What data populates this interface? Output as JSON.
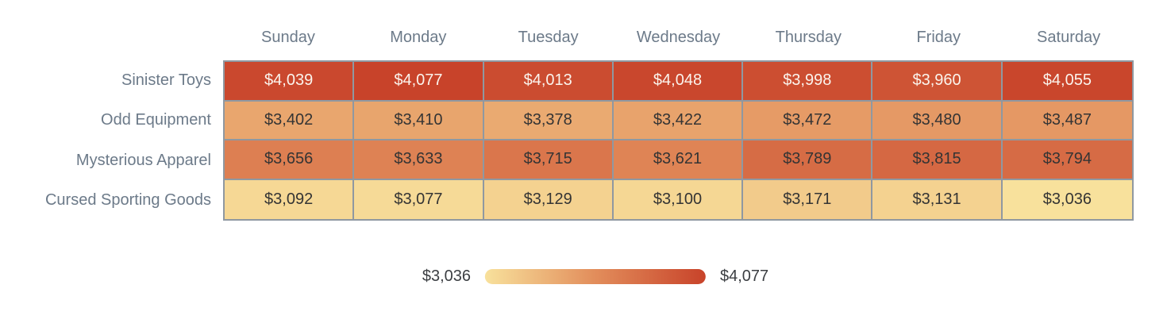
{
  "chart_data": {
    "type": "heatmap",
    "columns": [
      "Sunday",
      "Monday",
      "Tuesday",
      "Wednesday",
      "Thursday",
      "Friday",
      "Saturday"
    ],
    "rows": [
      {
        "label": "Sinister Toys",
        "values": [
          4039,
          4077,
          4013,
          4048,
          3998,
          3960,
          4055
        ]
      },
      {
        "label": "Odd Equipment",
        "values": [
          3402,
          3410,
          3378,
          3422,
          3472,
          3480,
          3487
        ]
      },
      {
        "label": "Mysterious Apparel",
        "values": [
          3656,
          3633,
          3715,
          3621,
          3789,
          3815,
          3794
        ]
      },
      {
        "label": "Cursed Sporting Goods",
        "values": [
          3092,
          3077,
          3129,
          3100,
          3171,
          3131,
          3036
        ]
      }
    ],
    "value_prefix": "$",
    "min": 3036,
    "max": 4077,
    "legend": {
      "min_label": "$3,036",
      "max_label": "$4,077",
      "position": "bottom-center"
    },
    "colorscale": {
      "start": "#F8E19C",
      "mid": "#E28D5B",
      "end": "#C8432A"
    },
    "grid": true
  },
  "colors": {
    "background": "#FFFFFF",
    "header_text": "#6C7A89",
    "row_label_text": "#6C7A89",
    "cell_border": "#8F98A1",
    "cell_text_dark": "#343434",
    "cell_text_light": "#FBF4ED",
    "legend_text": "#3B3E42"
  }
}
